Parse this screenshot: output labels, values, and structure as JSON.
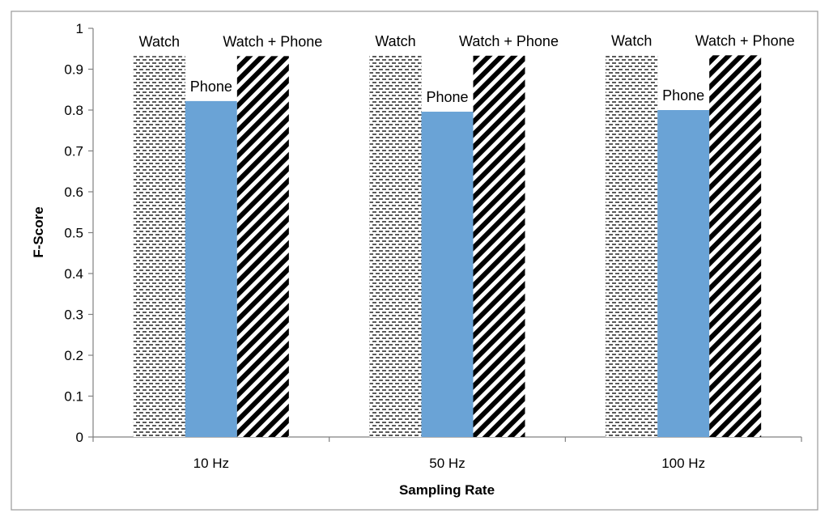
{
  "chart_data": {
    "type": "bar",
    "categories": [
      "10 Hz",
      "50 Hz",
      "100 Hz"
    ],
    "series": [
      {
        "name": "Watch",
        "values": [
          0.932,
          0.933,
          0.934
        ],
        "fill": "dashes"
      },
      {
        "name": "Phone",
        "values": [
          0.822,
          0.796,
          0.8
        ],
        "fill": "#6aa3d6"
      },
      {
        "name": "Watch + Phone",
        "values": [
          0.932,
          0.933,
          0.934
        ],
        "fill": "hatch"
      }
    ],
    "xlabel": "Sampling Rate",
    "ylabel": "F-Score",
    "ylim": [
      0,
      1
    ],
    "yticks": [
      "0",
      "0.1",
      "0.2",
      "0.3",
      "0.4",
      "0.5",
      "0.6",
      "0.7",
      "0.8",
      "0.9",
      "1"
    ],
    "grid": false,
    "legend": "none",
    "colors": {
      "phone": "#6aa3d6",
      "axis": "#808080",
      "frame": "#a0a0a0"
    }
  }
}
